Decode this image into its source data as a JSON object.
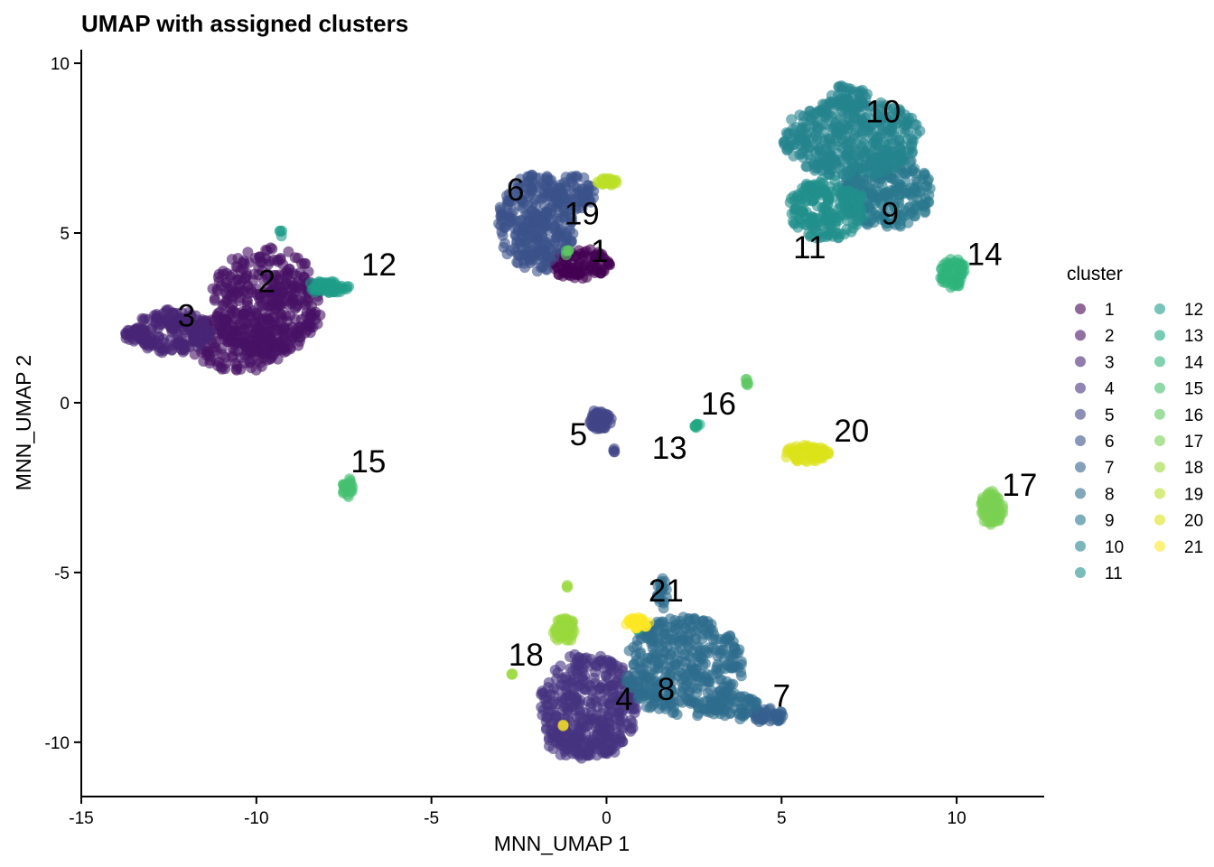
{
  "chart_data": {
    "type": "scatter",
    "title": "UMAP with assigned clusters",
    "xlabel": "MNN_UMAP 1",
    "ylabel": "MNN_UMAP 2",
    "xlim": [
      -15,
      12.5
    ],
    "ylim": [
      -11.6,
      10.4
    ],
    "x_ticks": [
      -15,
      -10,
      -5,
      0,
      5,
      10
    ],
    "x_tick_labels": [
      "-15",
      "-10",
      "-5",
      "0",
      "5",
      "10"
    ],
    "y_ticks": [
      -10,
      -5,
      0,
      5,
      10
    ],
    "y_tick_labels": [
      "-10",
      "-5",
      "0",
      "5",
      "10"
    ],
    "grid": false,
    "legend": {
      "title": "cluster",
      "position": "right",
      "columns": 2,
      "entries": [
        {
          "label": "1",
          "color": "#440154"
        },
        {
          "label": "2",
          "color": "#471365"
        },
        {
          "label": "3",
          "color": "#482475"
        },
        {
          "label": "4",
          "color": "#463480"
        },
        {
          "label": "5",
          "color": "#414487"
        },
        {
          "label": "6",
          "color": "#3B528B"
        },
        {
          "label": "7",
          "color": "#355F8D"
        },
        {
          "label": "8",
          "color": "#2F6C8E"
        },
        {
          "label": "9",
          "color": "#2A788E"
        },
        {
          "label": "10",
          "color": "#25848E"
        },
        {
          "label": "11",
          "color": "#21908C"
        },
        {
          "label": "12",
          "color": "#1E9C89"
        },
        {
          "label": "13",
          "color": "#22A884"
        },
        {
          "label": "14",
          "color": "#2FB47C"
        },
        {
          "label": "15",
          "color": "#44BF70"
        },
        {
          "label": "16",
          "color": "#5DC863"
        },
        {
          "label": "17",
          "color": "#7AD151"
        },
        {
          "label": "18",
          "color": "#9AD93C"
        },
        {
          "label": "19",
          "color": "#BBDF27"
        },
        {
          "label": "20",
          "color": "#DCE319"
        },
        {
          "label": "21",
          "color": "#FDE725"
        }
      ]
    },
    "cluster_labels": [
      {
        "label": "1",
        "x": -0.2,
        "y": 4.4
      },
      {
        "label": "2",
        "x": -9.7,
        "y": 3.5
      },
      {
        "label": "3",
        "x": -12.0,
        "y": 2.5
      },
      {
        "label": "4",
        "x": 0.5,
        "y": -8.8
      },
      {
        "label": "5",
        "x": -0.8,
        "y": -1.0
      },
      {
        "label": "6",
        "x": -2.6,
        "y": 6.2
      },
      {
        "label": "7",
        "x": 5.0,
        "y": -8.7
      },
      {
        "label": "8",
        "x": 1.7,
        "y": -8.5
      },
      {
        "label": "9",
        "x": 8.1,
        "y": 5.5
      },
      {
        "label": "10",
        "x": 7.9,
        "y": 8.5
      },
      {
        "label": "11",
        "x": 5.8,
        "y": 4.5
      },
      {
        "label": "12",
        "x": -6.5,
        "y": 4.0
      },
      {
        "label": "13",
        "x": 1.8,
        "y": -1.4
      },
      {
        "label": "14",
        "x": 10.8,
        "y": 4.3
      },
      {
        "label": "15",
        "x": -6.8,
        "y": -1.8
      },
      {
        "label": "16",
        "x": 3.2,
        "y": -0.1
      },
      {
        "label": "17",
        "x": 11.8,
        "y": -2.5
      },
      {
        "label": "18",
        "x": -2.3,
        "y": -7.5
      },
      {
        "label": "19",
        "x": -0.7,
        "y": 5.5
      },
      {
        "label": "20",
        "x": 7.0,
        "y": -0.9
      },
      {
        "label": "21",
        "x": 1.7,
        "y": -5.6
      }
    ],
    "clusters": [
      {
        "cluster": "1",
        "color": "#440154",
        "blobs": [
          {
            "x": -0.8,
            "y": 4.1,
            "rx": 0.9,
            "ry": 0.45,
            "n": 100
          }
        ]
      },
      {
        "cluster": "2",
        "color": "#471365",
        "blobs": [
          {
            "x": -9.7,
            "y": 3.0,
            "rx": 1.6,
            "ry": 1.6,
            "n": 400
          },
          {
            "x": -10.5,
            "y": 1.8,
            "rx": 1.4,
            "ry": 0.9,
            "n": 150
          }
        ]
      },
      {
        "cluster": "3",
        "color": "#482475",
        "blobs": [
          {
            "x": -12.4,
            "y": 2.1,
            "rx": 1.1,
            "ry": 0.65,
            "n": 160
          },
          {
            "x": -13.4,
            "y": 2.0,
            "rx": 0.4,
            "ry": 0.2,
            "n": 30
          }
        ]
      },
      {
        "cluster": "4",
        "color": "#463480",
        "blobs": [
          {
            "x": -0.5,
            "y": -8.9,
            "rx": 1.4,
            "ry": 1.55,
            "n": 350
          },
          {
            "x": -0.6,
            "y": -10.0,
            "rx": 1.1,
            "ry": 0.5,
            "n": 80
          }
        ]
      },
      {
        "cluster": "5",
        "color": "#414487",
        "blobs": [
          {
            "x": -0.2,
            "y": -0.5,
            "rx": 0.35,
            "ry": 0.3,
            "n": 50
          },
          {
            "x": 0.2,
            "y": -1.4,
            "rx": 0.05,
            "ry": 0.08,
            "n": 4
          }
        ]
      },
      {
        "cluster": "6",
        "color": "#3B528B",
        "blobs": [
          {
            "x": -2.0,
            "y": 5.3,
            "rx": 1.1,
            "ry": 1.45,
            "n": 300
          },
          {
            "x": -0.9,
            "y": 6.2,
            "rx": 0.6,
            "ry": 0.5,
            "n": 60
          }
        ]
      },
      {
        "cluster": "7",
        "color": "#355F8D",
        "blobs": [
          {
            "x": 4.6,
            "y": -9.2,
            "rx": 0.45,
            "ry": 0.25,
            "n": 40
          }
        ]
      },
      {
        "cluster": "8",
        "color": "#2F6C8E",
        "blobs": [
          {
            "x": 2.2,
            "y": -7.8,
            "rx": 1.7,
            "ry": 1.5,
            "n": 400
          },
          {
            "x": 3.6,
            "y": -8.9,
            "rx": 0.7,
            "ry": 0.45,
            "n": 60
          },
          {
            "x": 1.6,
            "y": -5.6,
            "rx": 0.15,
            "ry": 0.5,
            "n": 20
          }
        ]
      },
      {
        "cluster": "9",
        "color": "#2A788E",
        "blobs": [
          {
            "x": 8.0,
            "y": 6.2,
            "rx": 1.3,
            "ry": 1.1,
            "n": 250
          }
        ]
      },
      {
        "cluster": "10",
        "color": "#25848E",
        "blobs": [
          {
            "x": 7.0,
            "y": 7.8,
            "rx": 2.0,
            "ry": 1.15,
            "n": 400
          },
          {
            "x": 6.9,
            "y": 9.0,
            "rx": 0.6,
            "ry": 0.4,
            "n": 40
          }
        ]
      },
      {
        "cluster": "11",
        "color": "#21908C",
        "blobs": [
          {
            "x": 6.3,
            "y": 5.7,
            "rx": 1.1,
            "ry": 0.9,
            "n": 200
          }
        ]
      },
      {
        "cluster": "12",
        "color": "#1E9C89",
        "blobs": [
          {
            "x": -8.0,
            "y": 3.4,
            "rx": 0.65,
            "ry": 0.18,
            "n": 50
          },
          {
            "x": -9.3,
            "y": 5.0,
            "rx": 0.1,
            "ry": 0.1,
            "n": 4
          }
        ]
      },
      {
        "cluster": "13",
        "color": "#22A884",
        "blobs": [
          {
            "x": 2.6,
            "y": -0.7,
            "rx": 0.1,
            "ry": 0.1,
            "n": 8
          },
          {
            "x": 0.9,
            "y": -6.6,
            "rx": 0.1,
            "ry": 0.08,
            "n": 5
          }
        ]
      },
      {
        "cluster": "14",
        "color": "#2FB47C",
        "blobs": [
          {
            "x": 9.9,
            "y": 3.8,
            "rx": 0.4,
            "ry": 0.45,
            "n": 60
          }
        ]
      },
      {
        "cluster": "15",
        "color": "#44BF70",
        "blobs": [
          {
            "x": -7.4,
            "y": -2.5,
            "rx": 0.15,
            "ry": 0.3,
            "n": 20
          }
        ]
      },
      {
        "cluster": "16",
        "color": "#5DC863",
        "blobs": [
          {
            "x": 4.0,
            "y": 0.6,
            "rx": 0.08,
            "ry": 0.1,
            "n": 6
          },
          {
            "x": -1.1,
            "y": 4.4,
            "rx": 0.1,
            "ry": 0.1,
            "n": 4
          }
        ]
      },
      {
        "cluster": "17",
        "color": "#7AD151",
        "blobs": [
          {
            "x": 11.0,
            "y": -3.1,
            "rx": 0.35,
            "ry": 0.5,
            "n": 60
          }
        ]
      },
      {
        "cluster": "18",
        "color": "#9AD93C",
        "blobs": [
          {
            "x": -1.2,
            "y": -6.7,
            "rx": 0.35,
            "ry": 0.35,
            "n": 50
          },
          {
            "x": -2.7,
            "y": -8.0,
            "rx": 0.04,
            "ry": 0.04,
            "n": 3
          },
          {
            "x": -1.1,
            "y": -5.4,
            "rx": 0.05,
            "ry": 0.05,
            "n": 3
          }
        ]
      },
      {
        "cluster": "19",
        "color": "#BBDF27",
        "blobs": [
          {
            "x": 0.0,
            "y": 6.5,
            "rx": 0.3,
            "ry": 0.12,
            "n": 25
          }
        ]
      },
      {
        "cluster": "20",
        "color": "#DCE319",
        "blobs": [
          {
            "x": 5.7,
            "y": -1.5,
            "rx": 0.65,
            "ry": 0.25,
            "n": 70
          }
        ]
      },
      {
        "cluster": "21",
        "color": "#FDE725",
        "blobs": [
          {
            "x": 0.9,
            "y": -6.5,
            "rx": 0.35,
            "ry": 0.18,
            "n": 30
          },
          {
            "x": -1.2,
            "y": -9.5,
            "rx": 0.05,
            "ry": 0.05,
            "n": 2
          }
        ]
      }
    ]
  }
}
